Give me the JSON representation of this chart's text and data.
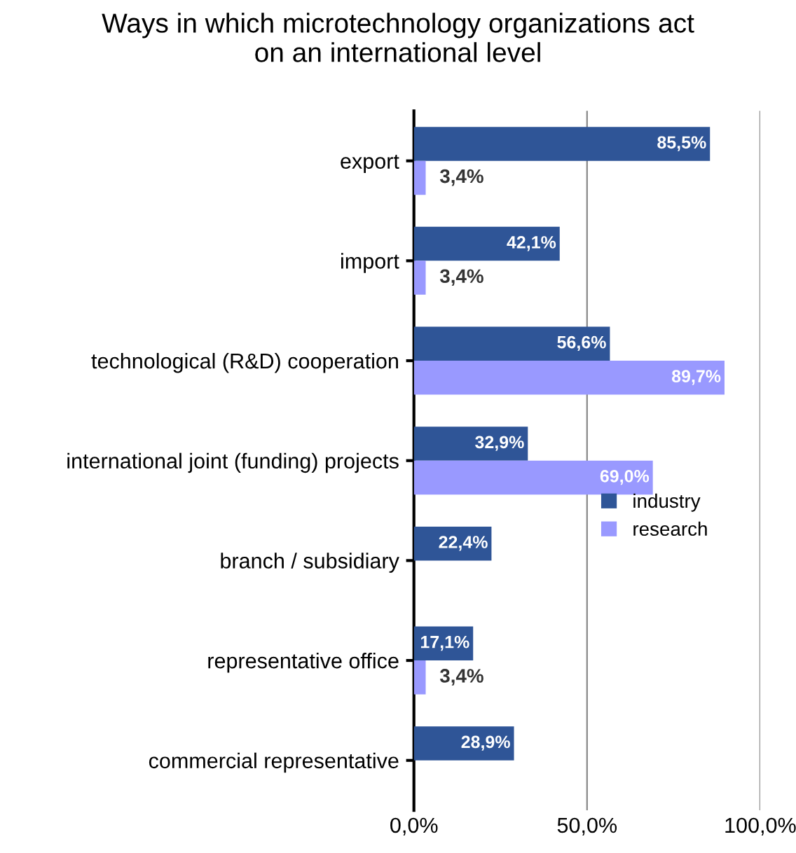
{
  "chart_data": {
    "type": "bar",
    "orientation": "horizontal",
    "title": "Ways in which microtechnology organizations act\non an international level",
    "categories": [
      "export",
      "import",
      "technological (R&D) cooperation",
      "international joint (funding) projects",
      "branch / subsidiary",
      "representative office",
      "commercial representative"
    ],
    "series": [
      {
        "name": "industry",
        "color": "#2f5597",
        "values": [
          85.5,
          42.1,
          56.6,
          32.9,
          22.4,
          17.1,
          28.9
        ],
        "value_labels": [
          "85,5%",
          "42,1%",
          "56,6%",
          "32,9%",
          "22,4%",
          "17,1%",
          "28,9%"
        ]
      },
      {
        "name": "research",
        "color": "#9999ff",
        "values": [
          3.4,
          3.4,
          89.7,
          69.0,
          null,
          3.4,
          null
        ],
        "value_labels": [
          "3,4%",
          "3,4%",
          "89,7%",
          "69,0%",
          null,
          "3,4%",
          null
        ]
      }
    ],
    "xlim": [
      0,
      100
    ],
    "xticks": [
      {
        "value": 0,
        "label": "0,0%"
      },
      {
        "value": 50,
        "label": "50,0%"
      },
      {
        "value": 100,
        "label": "100,0%"
      }
    ],
    "grid": "x",
    "legend": "right"
  }
}
